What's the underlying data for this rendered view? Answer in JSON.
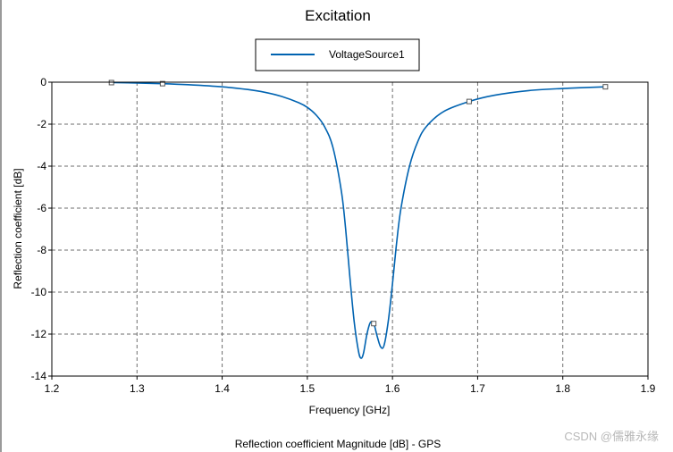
{
  "chart_data": {
    "type": "line",
    "title": "Excitation",
    "xlabel": "Frequency [GHz]",
    "ylabel": "Reflection coefficient [dB]",
    "footer": "Reflection coefficient Magnitude [dB] - GPS",
    "xlim": [
      1.2,
      1.9
    ],
    "ylim": [
      -14,
      0
    ],
    "x_ticks": [
      "1.2",
      "1.3",
      "1.4",
      "1.5",
      "1.6",
      "1.7",
      "1.8",
      "1.9"
    ],
    "y_ticks": [
      "0",
      "-2",
      "-4",
      "-6",
      "-8",
      "-10",
      "-12",
      "-14"
    ],
    "grid": true,
    "legend": {
      "position": "top-center",
      "entries": [
        "VoltageSource1"
      ]
    },
    "series": [
      {
        "name": "VoltageSource1",
        "color": "#0063b1",
        "x": [
          1.27,
          1.3,
          1.33,
          1.36,
          1.4,
          1.43,
          1.45,
          1.47,
          1.49,
          1.5,
          1.51,
          1.52,
          1.53,
          1.54,
          1.545,
          1.55,
          1.555,
          1.56,
          1.563,
          1.566,
          1.57,
          1.574,
          1.578,
          1.582,
          1.586,
          1.59,
          1.595,
          1.6,
          1.605,
          1.61,
          1.62,
          1.63,
          1.64,
          1.66,
          1.69,
          1.72,
          1.76,
          1.8,
          1.85
        ],
        "values": [
          -0.02,
          -0.04,
          -0.07,
          -0.12,
          -0.22,
          -0.35,
          -0.48,
          -0.68,
          -0.98,
          -1.2,
          -1.55,
          -2.1,
          -3.1,
          -5.2,
          -7.0,
          -9.3,
          -11.4,
          -12.8,
          -13.15,
          -12.9,
          -12.0,
          -11.45,
          -11.5,
          -12.1,
          -12.6,
          -12.55,
          -11.4,
          -9.6,
          -7.6,
          -6.0,
          -4.0,
          -2.8,
          -2.1,
          -1.4,
          -0.92,
          -0.62,
          -0.4,
          -0.3,
          -0.22
        ]
      }
    ],
    "markers": [
      {
        "x": 1.27,
        "y": -0.02
      },
      {
        "x": 1.33,
        "y": -0.07
      },
      {
        "x": 1.578,
        "y": -11.5
      },
      {
        "x": 1.69,
        "y": -0.92
      },
      {
        "x": 1.85,
        "y": -0.22
      }
    ]
  },
  "watermark": "CSDN @儒雅永缘",
  "colors": {
    "series": "#0063b1",
    "grid": "#6e6e6e",
    "frame": "#000000"
  }
}
